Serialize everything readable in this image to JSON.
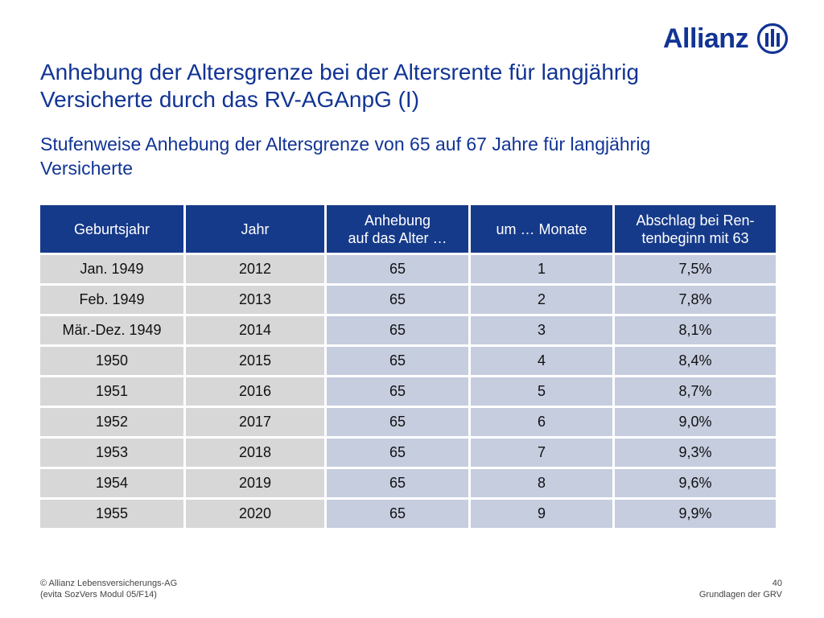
{
  "brand": {
    "name": "Allianz",
    "color": "#113494"
  },
  "title": "Anhebung der Altersgrenze bei der Altersrente für langjährig Versicherte durch das RV-AGAnpG (I)",
  "subtitle": "Stufenweise Anhebung der Altersgrenze von 65 auf 67 Jahre für langjährig Versicherte",
  "table": {
    "headers": [
      {
        "line1": "Geburtsjahr",
        "line2": ""
      },
      {
        "line1": "Jahr",
        "line2": ""
      },
      {
        "line1": "Anhebung",
        "line2": "auf das Alter …"
      },
      {
        "line1": "um … Monate",
        "line2": ""
      },
      {
        "line1": "Abschlag bei Ren-",
        "line2": "tenbeginn mit 63"
      }
    ],
    "rows": [
      [
        "Jan. 1949",
        "2012",
        "65",
        "1",
        "7,5%"
      ],
      [
        "Feb. 1949",
        "2013",
        "65",
        "2",
        "7,8%"
      ],
      [
        "Mär.-Dez. 1949",
        "2014",
        "65",
        "3",
        "8,1%"
      ],
      [
        "1950",
        "2015",
        "65",
        "4",
        "8,4%"
      ],
      [
        "1951",
        "2016",
        "65",
        "5",
        "8,7%"
      ],
      [
        "1952",
        "2017",
        "65",
        "6",
        "9,0%"
      ],
      [
        "1953",
        "2018",
        "65",
        "7",
        "9,3%"
      ],
      [
        "1954",
        "2019",
        "65",
        "8",
        "9,6%"
      ],
      [
        "1955",
        "2020",
        "65",
        "9",
        "9,9%"
      ]
    ]
  },
  "footer": {
    "left_line1": "© Allianz Lebensversicherungs-AG",
    "left_line2": "(evita SozVers Modul 05/F14)",
    "page_number": "40",
    "section": "Grundlagen der GRV"
  },
  "colors": {
    "header_bg": "#163a8a",
    "cell_light": "#d7d7d7",
    "cell_blue": "#c6cddf"
  }
}
